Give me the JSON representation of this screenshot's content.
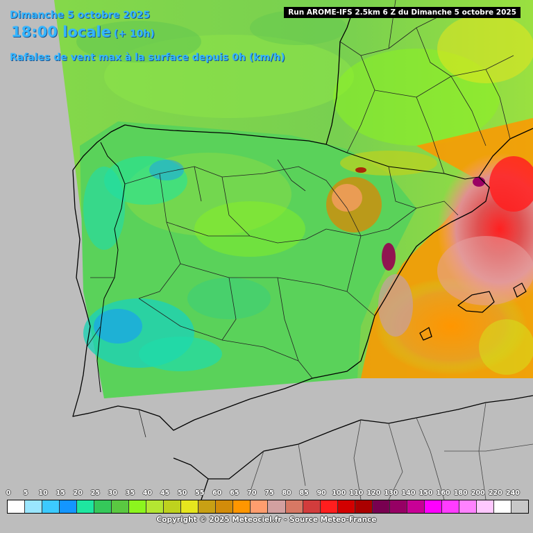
{
  "header": {
    "date": "Dimanche 5 octobre 2025",
    "time": "18:00 locale",
    "offset": "(+ 10h)",
    "parameter": "Rafales de vent max à la surface depuis 0h (km/h)",
    "run": "Run AROME-IFS 2.5km 6 Z du Dimanche 5 octobre 2025"
  },
  "legend": {
    "labels": [
      "0",
      "5",
      "10",
      "15",
      "20",
      "25",
      "30",
      "35",
      "40",
      "45",
      "50",
      "55",
      "60",
      "65",
      "70",
      "75",
      "80",
      "85",
      "90",
      "100",
      "110",
      "120",
      "130",
      "140",
      "150",
      "160",
      "180",
      "200",
      "220",
      "240"
    ],
    "colors": [
      "#ffffff",
      "#9ae6ff",
      "#3ccaff",
      "#1496ff",
      "#1ee6a0",
      "#35c85a",
      "#5ac841",
      "#8cf51e",
      "#b4e632",
      "#bed21e",
      "#e6e61e",
      "#c8a014",
      "#d28c0a",
      "#ff9600",
      "#ff9d6e",
      "#d2a0a0",
      "#d77864",
      "#d23c3c",
      "#ff1e1e",
      "#d20000",
      "#aa0000",
      "#780050",
      "#960064",
      "#c80096",
      "#ff00ff",
      "#ff3cff",
      "#ff82ff",
      "#ffc8ff",
      "#ffffff",
      "#c8c8c8"
    ]
  },
  "copyright": "Copyright © 2025 Meteociel.fr - Source Meteo-France"
}
